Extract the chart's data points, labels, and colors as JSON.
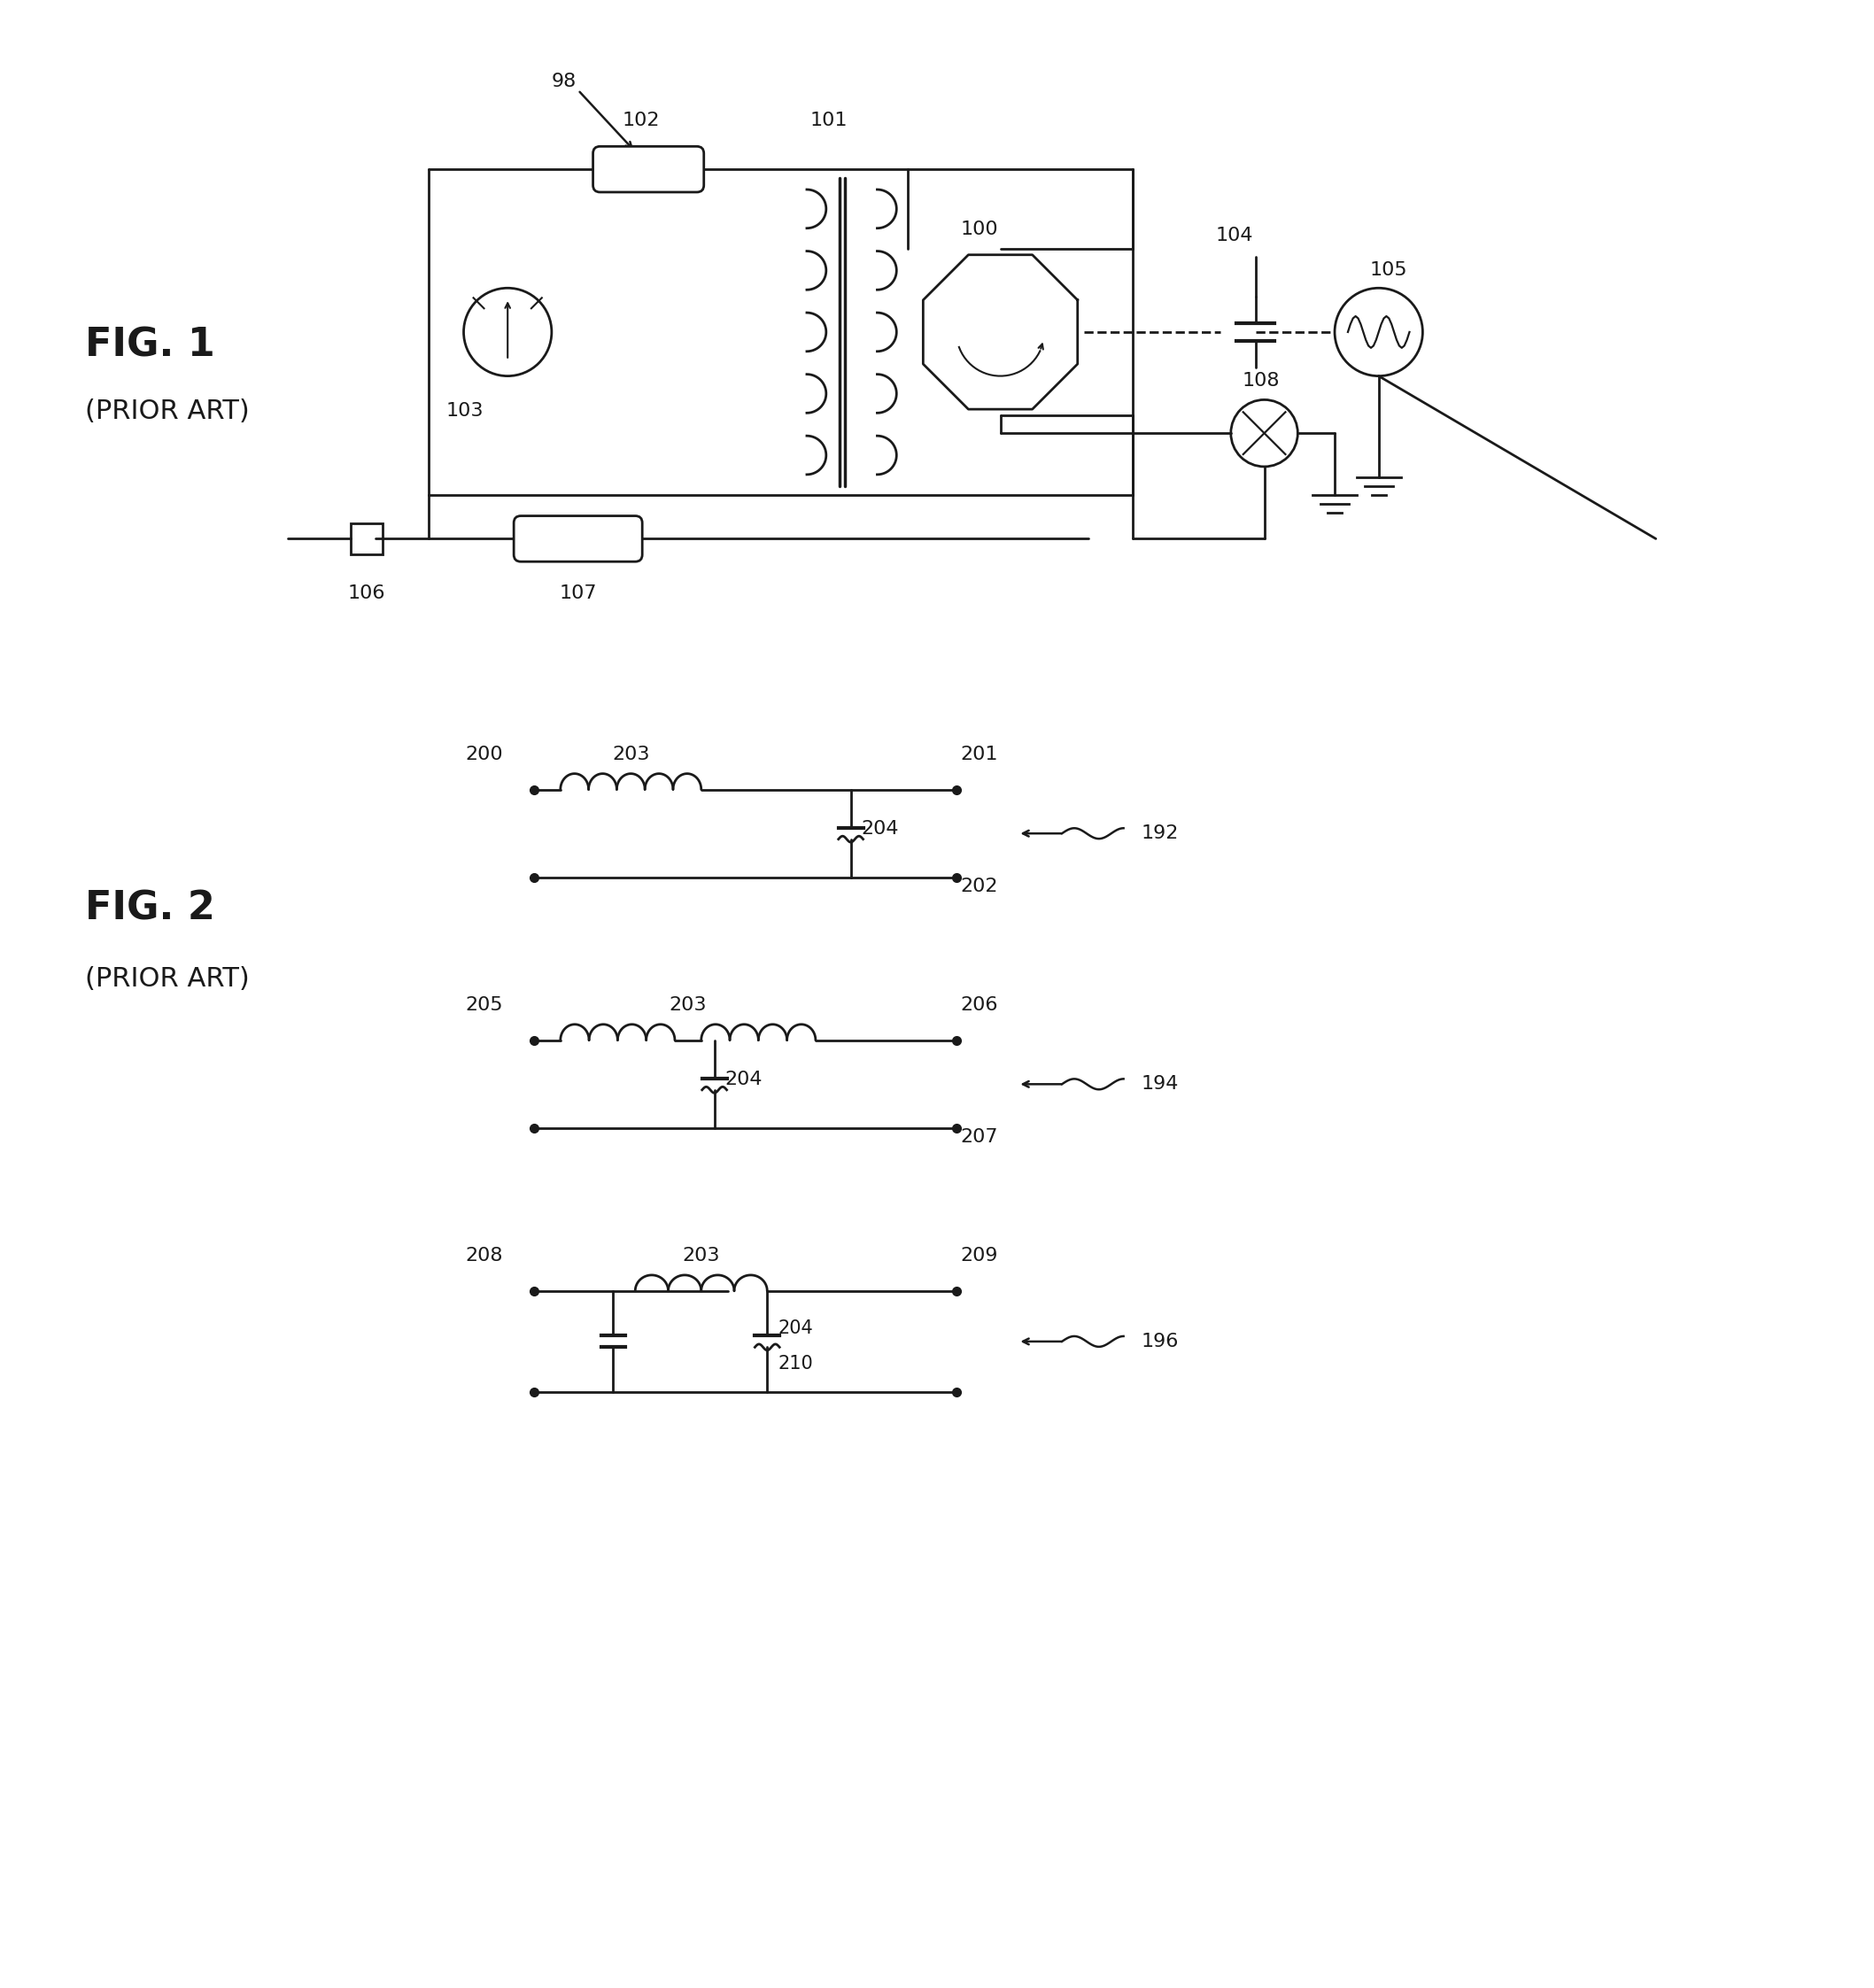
{
  "bg_color": "#ffffff",
  "fig_width": 21.16,
  "fig_height": 22.45,
  "line_color": "#1a1a1a",
  "line_width": 2.0,
  "font_size_small": 16,
  "font_size_fig": 32,
  "font_size_prior": 22,
  "fig1_label": "FIG. 1",
  "fig1_sublabel": "(PRIOR ART)",
  "fig2_label": "FIG. 2",
  "fig2_sublabel": "(PRIOR ART)"
}
